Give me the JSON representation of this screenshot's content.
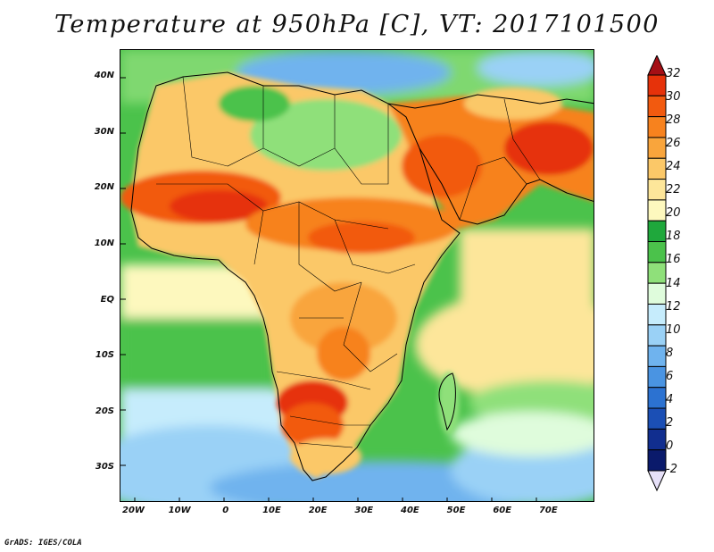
{
  "title": "Temperature at 950hPa [C], VT: 2017101500",
  "footer": "GrADS: IGES/COLA",
  "map": {
    "lon_range": [
      -23,
      80
    ],
    "lat_range": [
      -36,
      45
    ],
    "y_ticks": [
      {
        "label": "40N",
        "lat": 40
      },
      {
        "label": "30N",
        "lat": 30
      },
      {
        "label": "20N",
        "lat": 20
      },
      {
        "label": "10N",
        "lat": 10
      },
      {
        "label": "EQ",
        "lat": 0
      },
      {
        "label": "10S",
        "lat": -10
      },
      {
        "label": "20S",
        "lat": -20
      },
      {
        "label": "30S",
        "lat": -30
      }
    ],
    "x_ticks": [
      {
        "label": "20W",
        "lon": -20
      },
      {
        "label": "10W",
        "lon": -10
      },
      {
        "label": "0",
        "lon": 0
      },
      {
        "label": "10E",
        "lon": 10
      },
      {
        "label": "20E",
        "lon": 20
      },
      {
        "label": "30E",
        "lon": 30
      },
      {
        "label": "40E",
        "lon": 40
      },
      {
        "label": "50E",
        "lon": 50
      },
      {
        "label": "60E",
        "lon": 60
      },
      {
        "label": "70E",
        "lon": 70
      }
    ]
  },
  "colorbar": {
    "labels": [
      "32",
      "30",
      "28",
      "26",
      "24",
      "22",
      "20",
      "18",
      "16",
      "14",
      "12",
      "10",
      "8",
      "6",
      "4",
      "2",
      "0",
      "-2"
    ],
    "colors_top_to_bottom": [
      "#a50f15",
      "#e6320a",
      "#f25a0f",
      "#f7821e",
      "#f9a53c",
      "#fbc868",
      "#fde69a",
      "#fdf8be",
      "#1fa83c",
      "#4bc24b",
      "#8fe07a",
      "#dffcdc",
      "#c6ecfc",
      "#9ad1f6",
      "#6fb3ee",
      "#4a94e2",
      "#2c72d1",
      "#1b4fb5",
      "#112e8f",
      "#0a1a6b",
      "#e6e0f8"
    ]
  }
}
